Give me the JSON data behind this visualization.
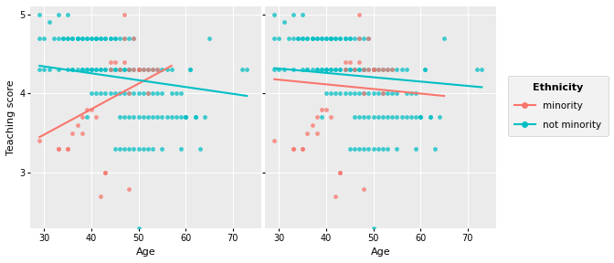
{
  "xlabel": "Age",
  "ylabel": "Teaching score",
  "bg_color": "#EBEBEB",
  "grid_color": "white",
  "minority_color": "#F8766D",
  "not_minority_color": "#00BFC4",
  "legend_title": "Ethnicity",
  "xlim": [
    27,
    76
  ],
  "ylim": [
    2.3,
    5.1
  ],
  "xticks": [
    30,
    40,
    50,
    60,
    70
  ],
  "yticks": [
    3,
    4,
    5
  ],
  "marker_size": 12,
  "marker_alpha": 0.75,
  "line_width": 1.5,
  "interaction_minority_line": [
    29,
    3.45,
    57,
    4.35
  ],
  "interaction_not_minority_line": [
    29,
    4.35,
    73,
    3.97
  ],
  "parallel_minority_line": [
    29,
    4.18,
    65,
    3.97
  ],
  "parallel_not_minority_line": [
    29,
    4.32,
    73,
    4.08
  ],
  "minority_ages": [
    29,
    33,
    33,
    35,
    35,
    36,
    37,
    38,
    38,
    39,
    40,
    41,
    42,
    43,
    43,
    44,
    44,
    45,
    46,
    47,
    47,
    47,
    48,
    48,
    48,
    49,
    49,
    50,
    50,
    51,
    52,
    52,
    53,
    54
  ],
  "minority_scores": [
    3.4,
    3.3,
    3.3,
    3.3,
    3.3,
    3.5,
    3.6,
    3.7,
    3.5,
    3.8,
    3.8,
    3.7,
    2.7,
    3.0,
    3.0,
    4.4,
    4.3,
    4.4,
    4.3,
    4.4,
    5.0,
    4.7,
    4.3,
    4.0,
    2.8,
    4.3,
    4.7,
    4.3,
    4.3,
    4.3,
    4.3,
    4.0,
    4.3,
    4.3
  ],
  "not_minority_ages": [
    29,
    29,
    29,
    30,
    30,
    31,
    31,
    32,
    33,
    33,
    33,
    34,
    34,
    35,
    35,
    35,
    35,
    36,
    36,
    36,
    36,
    37,
    37,
    37,
    37,
    38,
    38,
    38,
    38,
    39,
    39,
    39,
    39,
    39,
    40,
    40,
    40,
    40,
    40,
    40,
    41,
    41,
    41,
    41,
    41,
    41,
    42,
    42,
    42,
    42,
    42,
    43,
    43,
    43,
    43,
    43,
    44,
    44,
    44,
    44,
    44,
    45,
    45,
    45,
    45,
    45,
    45,
    46,
    46,
    46,
    46,
    46,
    46,
    47,
    47,
    47,
    47,
    47,
    47,
    48,
    48,
    48,
    48,
    48,
    48,
    49,
    49,
    49,
    49,
    49,
    50,
    50,
    50,
    50,
    50,
    50,
    50,
    51,
    51,
    51,
    51,
    52,
    52,
    52,
    52,
    53,
    53,
    53,
    53,
    54,
    54,
    54,
    55,
    55,
    55,
    55,
    56,
    56,
    57,
    57,
    57,
    58,
    58,
    59,
    59,
    59,
    60,
    60,
    60,
    61,
    61,
    62,
    62,
    63,
    64,
    65,
    72,
    73
  ],
  "not_minority_scores": [
    4.7,
    4.3,
    5.0,
    4.7,
    4.3,
    4.9,
    4.3,
    4.7,
    4.7,
    4.3,
    5.0,
    4.7,
    4.7,
    4.7,
    4.7,
    4.3,
    5.0,
    4.7,
    4.7,
    4.3,
    4.3,
    4.7,
    4.7,
    4.7,
    4.3,
    4.7,
    4.7,
    4.3,
    4.3,
    4.7,
    4.7,
    4.3,
    4.3,
    3.7,
    4.7,
    4.7,
    4.3,
    4.3,
    4.3,
    4.0,
    4.7,
    4.7,
    4.7,
    4.3,
    4.3,
    4.0,
    4.7,
    4.7,
    4.3,
    4.3,
    4.0,
    4.7,
    4.7,
    4.3,
    4.3,
    4.0,
    4.7,
    4.7,
    4.3,
    4.3,
    4.0,
    4.7,
    4.7,
    4.3,
    4.3,
    4.0,
    3.3,
    4.7,
    4.3,
    4.3,
    4.0,
    3.7,
    3.3,
    4.7,
    4.3,
    4.3,
    4.0,
    3.7,
    3.3,
    4.7,
    4.3,
    4.3,
    4.0,
    3.7,
    3.3,
    4.7,
    4.3,
    4.0,
    3.7,
    3.3,
    4.3,
    4.3,
    4.3,
    4.0,
    3.7,
    3.3,
    2.3,
    4.3,
    4.0,
    3.7,
    3.3,
    4.3,
    4.0,
    3.7,
    3.3,
    4.3,
    4.0,
    3.7,
    3.3,
    4.3,
    4.0,
    3.7,
    4.3,
    4.0,
    3.7,
    3.3,
    4.3,
    3.7,
    4.3,
    4.0,
    3.7,
    4.0,
    3.7,
    4.0,
    3.7,
    3.3,
    3.7,
    3.7,
    3.7,
    4.3,
    4.3,
    3.7,
    3.7,
    3.3,
    3.7,
    4.7,
    4.3,
    4.3
  ]
}
